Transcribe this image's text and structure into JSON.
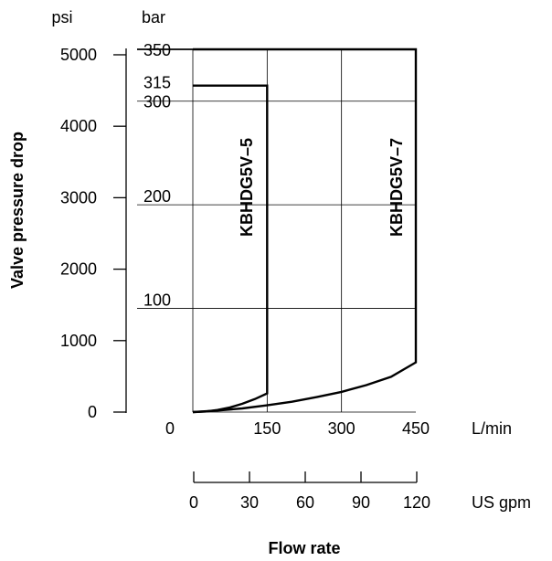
{
  "chart_data": {
    "type": "line",
    "title": "",
    "ylabel": "Valve pressure drop",
    "xlabel": "Flow rate",
    "y_axes": {
      "psi": {
        "unit": "psi",
        "ticks": [
          "0",
          "1000",
          "2000",
          "3000",
          "4000",
          "5000"
        ],
        "range": [
          0,
          5000
        ]
      },
      "bar": {
        "unit": "bar",
        "ticks": [
          "100",
          "200",
          "300",
          "315",
          "350"
        ],
        "range": [
          0,
          350
        ]
      }
    },
    "x_axes": {
      "lmin": {
        "unit": "L/min",
        "ticks": [
          "0",
          "150",
          "300",
          "450"
        ],
        "range": [
          0,
          450
        ]
      },
      "gpm": {
        "unit": "US gpm",
        "ticks": [
          "0",
          "30",
          "60",
          "90",
          "120"
        ],
        "range": [
          0,
          120
        ]
      }
    },
    "grid": true,
    "series": [
      {
        "name": "KBHDG5V–5",
        "x_lmin": [
          0,
          25,
          50,
          75,
          100,
          125,
          150,
          150,
          0
        ],
        "y_bar": [
          0,
          0.5,
          2,
          4.5,
          8,
          12.5,
          18,
          315,
          315
        ]
      },
      {
        "name": "KBHDG5V–7",
        "x_lmin": [
          0,
          50,
          100,
          150,
          200,
          250,
          300,
          350,
          400,
          450,
          450,
          0
        ],
        "y_bar": [
          0,
          1.5,
          3.5,
          6.5,
          10,
          14.5,
          19.5,
          26,
          34,
          48,
          350,
          350
        ]
      }
    ]
  }
}
